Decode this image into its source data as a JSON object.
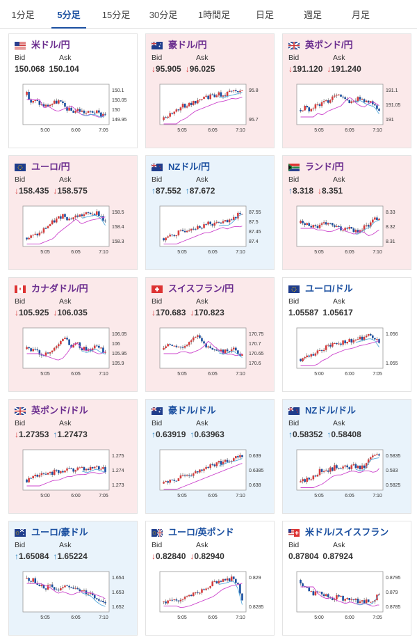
{
  "tabs": [
    "1分足",
    "5分足",
    "15分足",
    "30分足",
    "1時間足",
    "日足",
    "週足",
    "月足"
  ],
  "active_tab": 1,
  "labels": {
    "bid": "Bid",
    "ask": "Ask"
  },
  "colors": {
    "down_bg": "#fbe9ea",
    "up_bg": "#e9f3fb",
    "up_candle": "#d63b3b",
    "down_candle": "#1a4fa0",
    "ma_line": "#cc44cc",
    "ma2_line": "#55aadd"
  },
  "cards": [
    {
      "pair": "米ドル/円",
      "flag": "flag-us",
      "trend": "flat",
      "bid_dir": "",
      "ask_dir": "",
      "bid": "150.068",
      "ask": "150.104",
      "yticks": [
        "150.1",
        "150.05",
        "150",
        "149.95"
      ],
      "xticks": [
        "5:00",
        "6:00",
        "7:05"
      ]
    },
    {
      "pair": "豪ドル/円",
      "flag": "flag-au",
      "trend": "down",
      "bid_dir": "down",
      "ask_dir": "down",
      "bid": "95.905",
      "ask": "96.025",
      "yticks": [
        "95.8",
        "95.7"
      ],
      "xticks": [
        "5:05",
        "6:05",
        "7:10"
      ]
    },
    {
      "pair": "英ポンド/円",
      "flag": "flag-uk",
      "trend": "down",
      "bid_dir": "down",
      "ask_dir": "down",
      "bid": "191.120",
      "ask": "191.240",
      "yticks": [
        "191.1",
        "191.05",
        "191"
      ],
      "xticks": [
        "5:05",
        "6:05",
        "7:10"
      ]
    },
    {
      "pair": "ユーロ/円",
      "flag": "flag-eu",
      "trend": "down",
      "bid_dir": "down",
      "ask_dir": "down",
      "bid": "158.435",
      "ask": "158.575",
      "yticks": [
        "158.5",
        "158.4",
        "158.3"
      ],
      "xticks": [
        "5:05",
        "6:05",
        "7:10"
      ]
    },
    {
      "pair": "NZドル/円",
      "flag": "flag-nz",
      "trend": "up",
      "bid_dir": "up",
      "ask_dir": "up",
      "bid": "87.552",
      "ask": "87.672",
      "yticks": [
        "87.55",
        "87.5",
        "87.45",
        "87.4"
      ],
      "xticks": [
        "5:05",
        "6:05",
        "7:10"
      ]
    },
    {
      "pair": "ランド/円",
      "flag": "flag-za",
      "trend": "down",
      "bid_dir": "up",
      "ask_dir": "down",
      "bid": "8.318",
      "ask": "8.351",
      "yticks": [
        "8.33",
        "8.32",
        "8.31"
      ],
      "xticks": [
        "5:05",
        "6:05",
        "7:10"
      ]
    },
    {
      "pair": "カナダドル/円",
      "flag": "flag-ca",
      "trend": "down",
      "bid_dir": "down",
      "ask_dir": "down",
      "bid": "105.925",
      "ask": "106.035",
      "yticks": [
        "106.05",
        "106",
        "105.95",
        "105.9"
      ],
      "xticks": [
        "5:05",
        "6:05",
        "7:10"
      ]
    },
    {
      "pair": "スイスフラン/円",
      "flag": "flag-ch",
      "trend": "down",
      "bid_dir": "down",
      "ask_dir": "down",
      "bid": "170.683",
      "ask": "170.823",
      "yticks": [
        "170.75",
        "170.7",
        "170.65",
        "170.6"
      ],
      "xticks": [
        "5:05",
        "6:05",
        "7:10"
      ]
    },
    {
      "pair": "ユーロ/ドル",
      "flag": "flag-eu",
      "trend": "flat",
      "bid_dir": "",
      "ask_dir": "",
      "bid": "1.05587",
      "ask": "1.05617",
      "yticks": [
        "1.056",
        "1.055"
      ],
      "xticks": [
        "5:00",
        "6:00",
        "7:05"
      ]
    },
    {
      "pair": "英ポンド/ドル",
      "flag": "flag-uk",
      "trend": "down",
      "bid_dir": "down",
      "ask_dir": "up",
      "bid": "1.27353",
      "ask": "1.27473",
      "yticks": [
        "1.275",
        "1.274",
        "1.273"
      ],
      "xticks": [
        "5:00",
        "6:00",
        "7:05"
      ]
    },
    {
      "pair": "豪ドル/ドル",
      "flag": "flag-au",
      "trend": "up",
      "bid_dir": "up",
      "ask_dir": "up",
      "bid": "0.63919",
      "ask": "0.63963",
      "yticks": [
        "0.639",
        "0.6385",
        "0.638"
      ],
      "xticks": [
        "5:05",
        "6:05",
        "7:10"
      ]
    },
    {
      "pair": "NZドル/ドル",
      "flag": "flag-nz",
      "trend": "up",
      "bid_dir": "up",
      "ask_dir": "up",
      "bid": "0.58352",
      "ask": "0.58408",
      "yticks": [
        "0.5835",
        "0.583",
        "0.5825"
      ],
      "xticks": [
        "5:05",
        "6:05",
        "7:10"
      ]
    },
    {
      "pair": "ユーロ/豪ドル",
      "flag": "flag-euau",
      "trend": "up",
      "bid_dir": "up",
      "ask_dir": "up",
      "bid": "1.65084",
      "ask": "1.65224",
      "yticks": [
        "1.654",
        "1.653",
        "1.652"
      ],
      "xticks": [
        "5:05",
        "6:05",
        "7:10"
      ]
    },
    {
      "pair": "ユーロ/英ポンド",
      "flag": "flag-euuk",
      "trend": "flat",
      "bid_dir": "down",
      "ask_dir": "down",
      "bid": "0.82840",
      "ask": "0.82940",
      "yticks": [
        "0.829",
        "0.8285"
      ],
      "xticks": [
        "5:05",
        "6:05",
        "7:10"
      ]
    },
    {
      "pair": "米ドル/スイスフラン",
      "flag": "flag-usch",
      "trend": "flat",
      "bid_dir": "",
      "ask_dir": "",
      "bid": "0.87804",
      "ask": "0.87924",
      "yticks": [
        "0.8795",
        "0.879",
        "0.8785"
      ],
      "xticks": [
        "5:00",
        "6:00",
        "7:05"
      ]
    }
  ]
}
